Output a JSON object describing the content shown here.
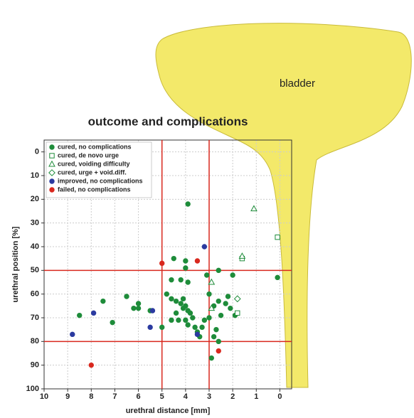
{
  "annotation": "bladder",
  "chart_data": {
    "type": "scatter",
    "title": "outcome and complications",
    "x_label": "urethral distance [mm]",
    "y_label": "urethral position [%]",
    "xlim": [
      10,
      -0.5
    ],
    "ylim": [
      -5,
      100
    ],
    "xticks": [
      10,
      9,
      8,
      7,
      6,
      5,
      4,
      3,
      2,
      1,
      0
    ],
    "yticks": [
      0,
      10,
      20,
      30,
      40,
      50,
      60,
      70,
      80,
      90,
      100
    ],
    "grid": true,
    "legend": "upper left",
    "reference_lines": {
      "x": [
        5,
        3
      ],
      "y": [
        50,
        80
      ],
      "color": "#d9281e"
    },
    "series": [
      {
        "name": "cured, no complications",
        "color": "#1e8c3a",
        "marker": "circle",
        "filled": true,
        "x": [
          3.9,
          4.5,
          4.0,
          4.0,
          3.1,
          2.6,
          2.0,
          0.1,
          4.6,
          4.2,
          3.9,
          8.5,
          7.5,
          7.1,
          6.5,
          6.2,
          6.0,
          6.0,
          5.5,
          5.0,
          4.8,
          4.6,
          4.4,
          4.2,
          4.0,
          3.9,
          3.8,
          4.1,
          3.7,
          4.4,
          4.6,
          4.3,
          4.0,
          3.9,
          3.6,
          3.3,
          3.2,
          3.0,
          3.5,
          3.4,
          4.1,
          3.0,
          2.6,
          2.3,
          2.1,
          2.2,
          1.9,
          2.5,
          2.7,
          2.8,
          2.6,
          2.9,
          2.8
        ],
        "values": [
          22,
          45,
          46,
          49,
          52,
          50,
          52,
          53,
          54,
          54,
          55,
          69,
          63,
          72,
          61,
          66,
          64,
          66,
          67,
          74,
          60,
          62,
          63,
          64,
          65,
          67,
          68,
          66,
          70,
          68,
          71,
          71,
          71,
          73,
          74,
          74,
          71,
          70,
          76,
          78,
          62,
          60,
          63,
          64,
          66,
          61,
          69,
          69,
          75,
          78,
          80,
          87,
          65
        ]
      },
      {
        "name": "cured, de novo urge",
        "color": "#1e8c3a",
        "marker": "square",
        "filled": false,
        "x": [
          0.1,
          1.6,
          1.8
        ],
        "values": [
          36,
          45,
          68
        ]
      },
      {
        "name": "cured, voiding difficulty",
        "color": "#1e8c3a",
        "marker": "triangle",
        "filled": false,
        "x": [
          1.1,
          1.6,
          2.9,
          2.9
        ],
        "values": [
          24,
          44,
          55,
          66
        ]
      },
      {
        "name": "cured, urge + void.diff.",
        "color": "#1e8c3a",
        "marker": "diamond",
        "filled": false,
        "x": [
          1.8
        ],
        "values": [
          62
        ]
      },
      {
        "name": "improved, no complications",
        "color": "#2b3aa0",
        "marker": "circle",
        "filled": true,
        "x": [
          3.2,
          5.4,
          5.5,
          3.5,
          8.8,
          7.9
        ],
        "values": [
          40,
          67,
          74,
          77,
          77,
          68
        ]
      },
      {
        "name": "failed, no complications",
        "color": "#d9281e",
        "marker": "circle",
        "filled": true,
        "x": [
          5.0,
          3.5,
          2.6,
          8.0
        ],
        "values": [
          47,
          46,
          84,
          90
        ]
      }
    ]
  }
}
